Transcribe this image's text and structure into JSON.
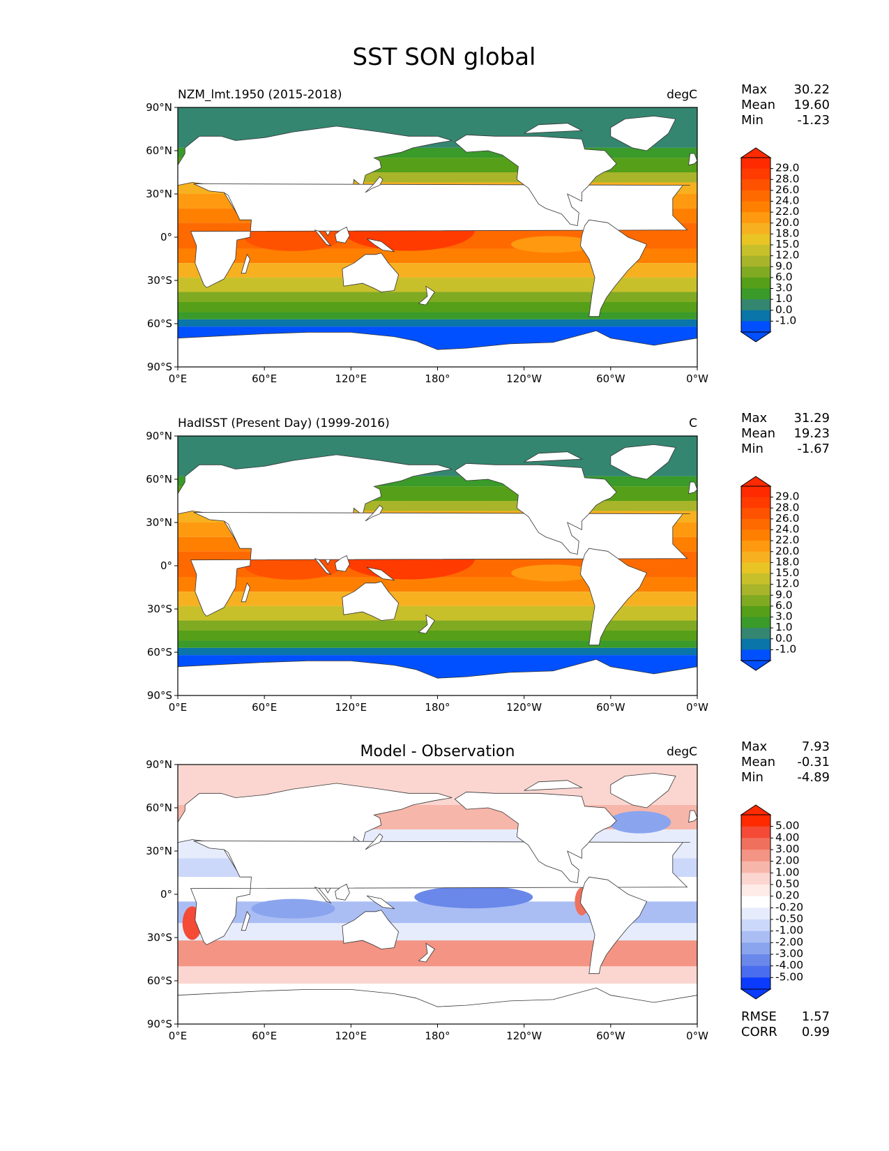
{
  "title": "SST SON global",
  "lat_ticks": [
    "90°N",
    "60°N",
    "30°N",
    "0°",
    "30°S",
    "60°S",
    "90°S"
  ],
  "lon_ticks": [
    "0°E",
    "60°E",
    "120°E",
    "180°",
    "120°W",
    "60°W",
    "0°W"
  ],
  "stat_labels": {
    "max": "Max",
    "mean": "Mean",
    "min": "Min",
    "rmse": "RMSE",
    "corr": "CORR"
  },
  "panels": [
    {
      "id": "model",
      "title_left": "NZM_lmt.1950 (2015-2018)",
      "title_center": "",
      "units": "degC",
      "stats": {
        "max": "30.22",
        "mean": "19.60",
        "min": "-1.23"
      },
      "colorbar": {
        "labels": [
          "29.0",
          "28.0",
          "26.0",
          "24.0",
          "22.0",
          "20.0",
          "18.0",
          "15.0",
          "12.0",
          "9.0",
          "6.0",
          "3.0",
          "1.0",
          "0.0",
          "-1.0"
        ],
        "colors": [
          "#ff2a00",
          "#ff3b00",
          "#ff5200",
          "#ff6a00",
          "#ff8000",
          "#ff9a10",
          "#f7b020",
          "#e8c424",
          "#c8c02a",
          "#a8b42a",
          "#80aa22",
          "#55a018",
          "#3a9a2a",
          "#348670",
          "#0a75a8",
          "#0050ff"
        ]
      }
    },
    {
      "id": "obs",
      "title_left": "HadISST (Present Day) (1999-2016)",
      "title_center": "",
      "units": "C",
      "stats": {
        "max": "31.29",
        "mean": "19.23",
        "min": "-1.67"
      },
      "colorbar": {
        "labels": [
          "29.0",
          "28.0",
          "26.0",
          "24.0",
          "22.0",
          "20.0",
          "18.0",
          "15.0",
          "12.0",
          "9.0",
          "6.0",
          "3.0",
          "1.0",
          "0.0",
          "-1.0"
        ],
        "colors": [
          "#ff2a00",
          "#ff3b00",
          "#ff5200",
          "#ff6a00",
          "#ff8000",
          "#ff9a10",
          "#f7b020",
          "#e8c424",
          "#c8c02a",
          "#a8b42a",
          "#80aa22",
          "#55a018",
          "#3a9a2a",
          "#348670",
          "#0a75a8",
          "#0050ff"
        ]
      }
    },
    {
      "id": "diff",
      "title_left": "",
      "title_center": "Model - Observation",
      "units": "degC",
      "stats": {
        "max": "7.93",
        "mean": "-0.31",
        "min": "-4.89"
      },
      "rmse": "1.57",
      "corr": "0.99",
      "colorbar": {
        "labels": [
          "5.00",
          "4.00",
          "3.00",
          "2.00",
          "1.00",
          "0.50",
          "0.20",
          "-0.20",
          "-0.50",
          "-1.00",
          "-2.00",
          "-3.00",
          "-4.00",
          "-5.00"
        ],
        "colors": [
          "#ff2a00",
          "#f44a36",
          "#f0705e",
          "#f39484",
          "#f7b6aa",
          "#fbd6d0",
          "#fdebe8",
          "#ffffff",
          "#e6ecfc",
          "#ccd8fa",
          "#aabef4",
          "#8aa4ee",
          "#6a88ea",
          "#4a6cee",
          "#0a3bff"
        ]
      }
    }
  ]
}
